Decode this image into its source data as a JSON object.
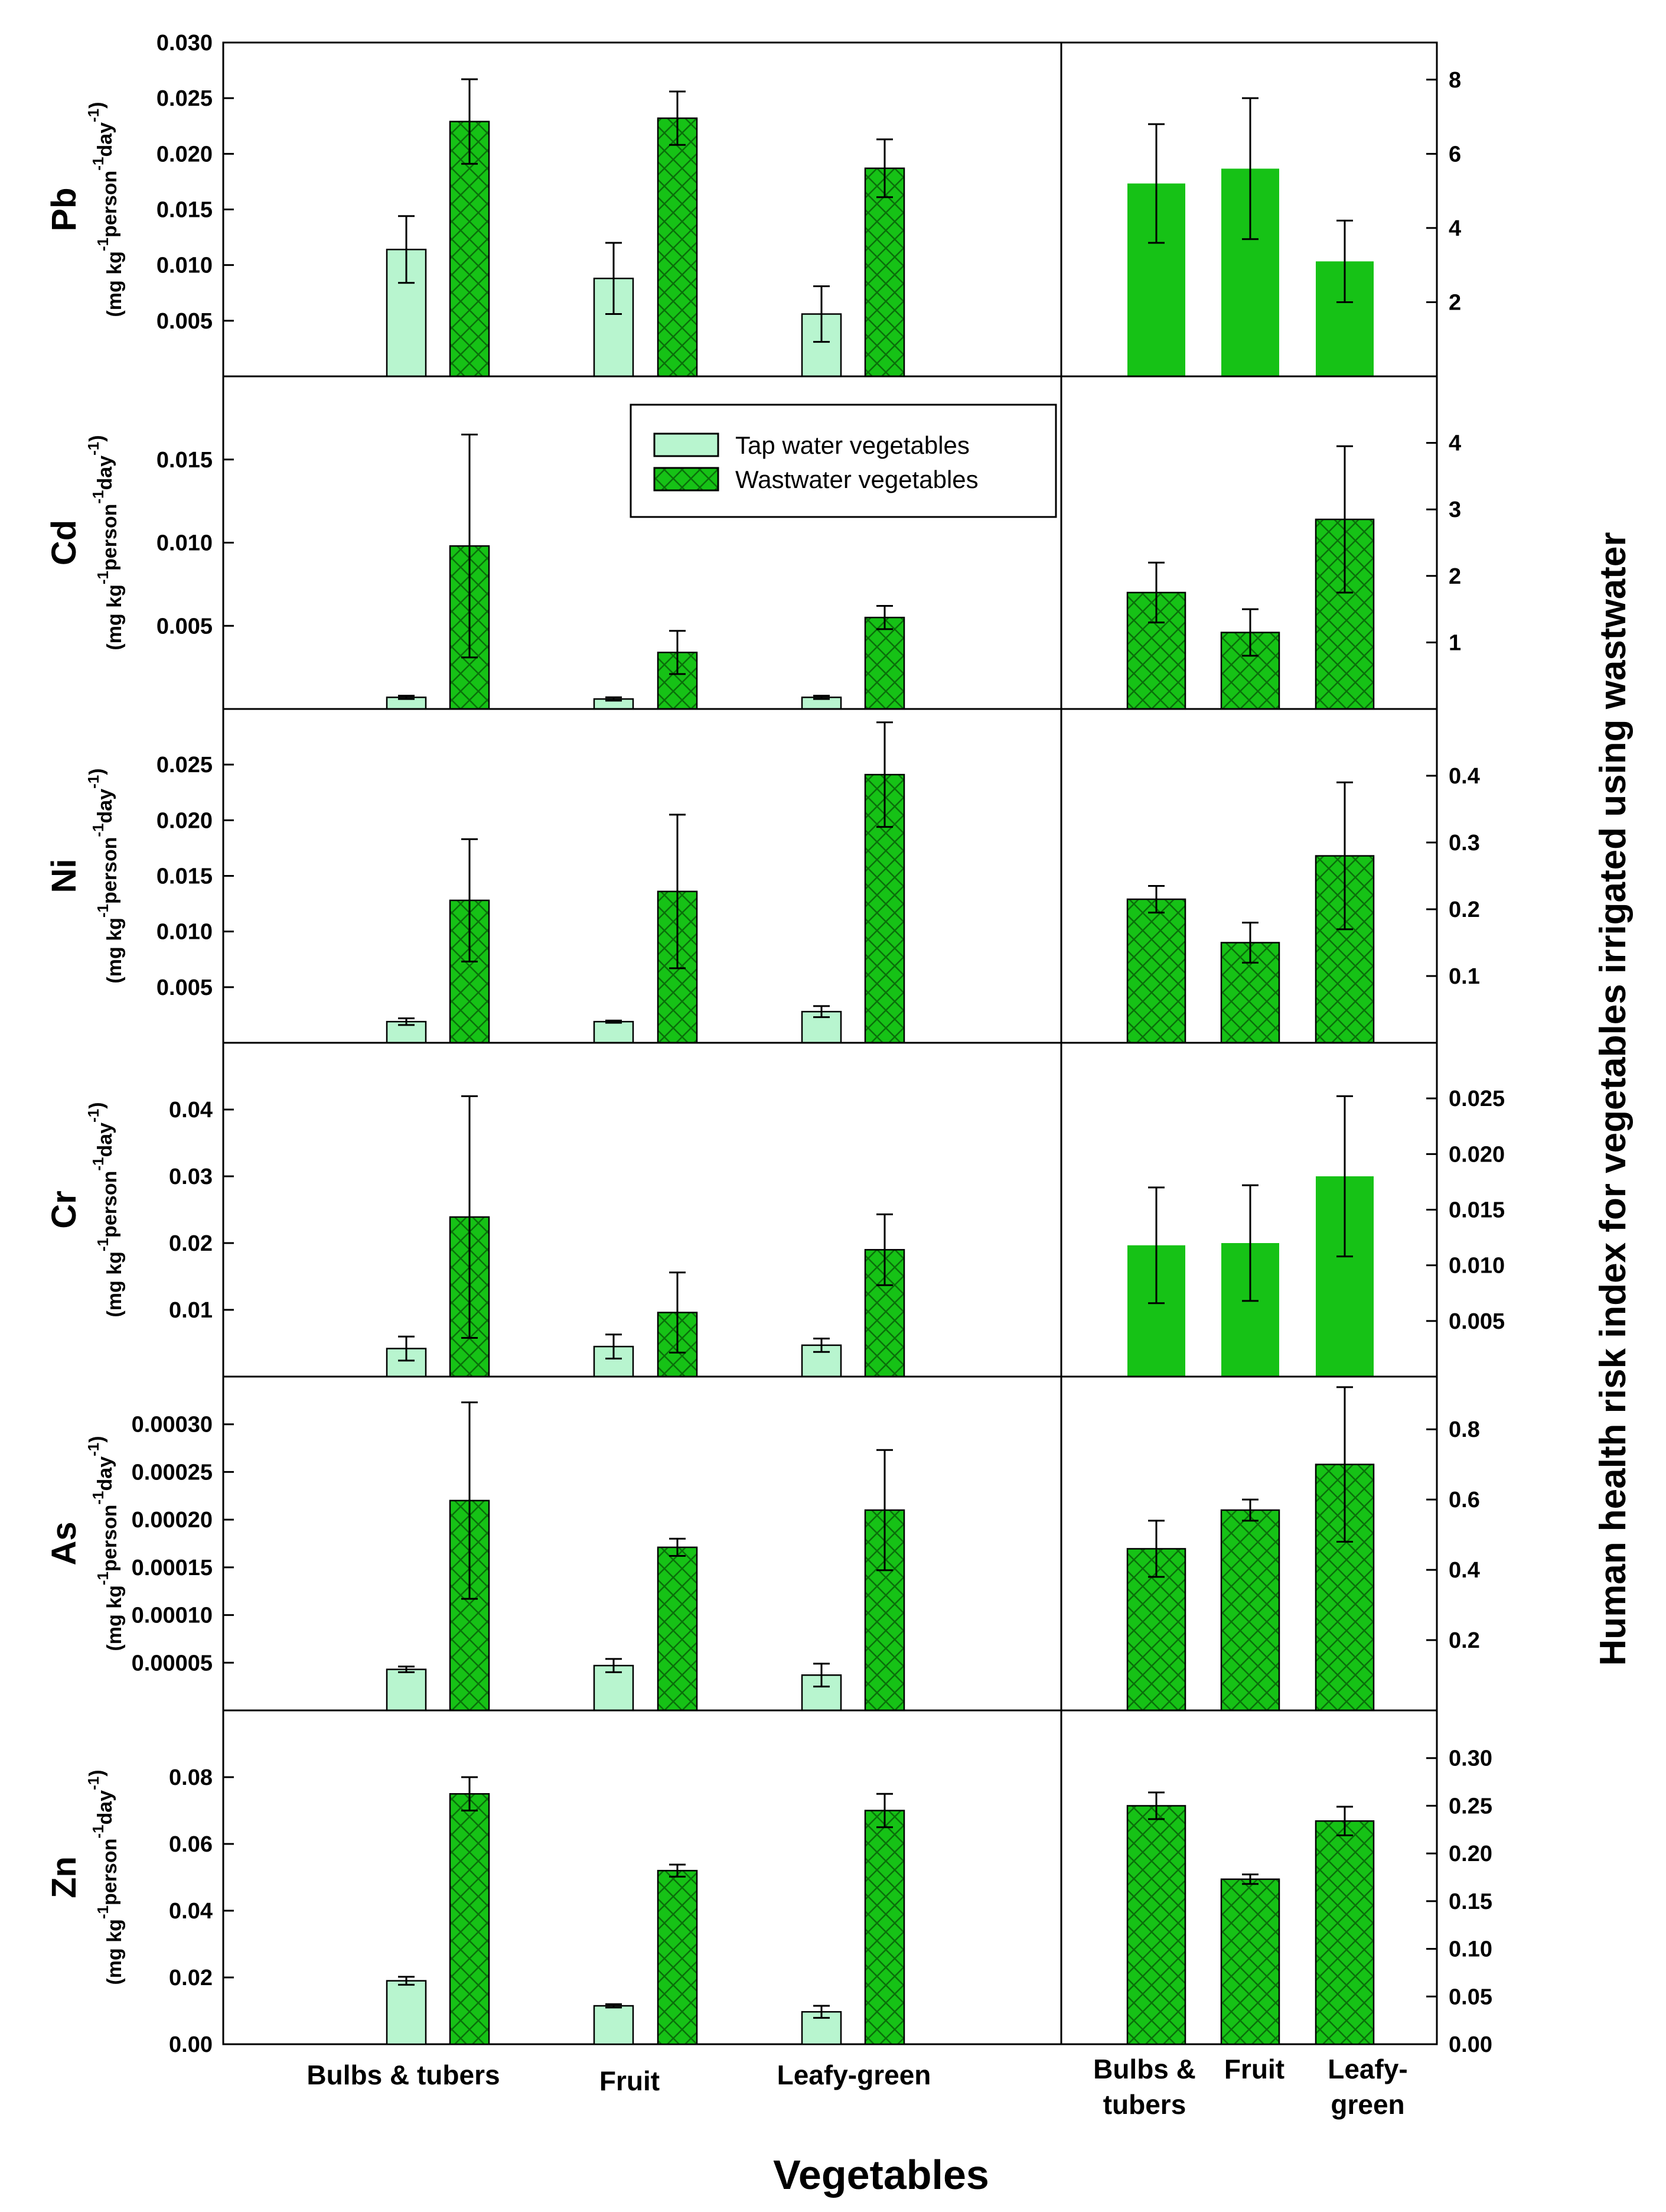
{
  "colors": {
    "tap_fill": "#b8f5cf",
    "tap_stroke": "#000000",
    "waste_fill": "#16c216",
    "waste_hatch": "#0a6f0a",
    "frame": "#000000"
  },
  "chart_data": {
    "type": "bar",
    "xlabel": "Vegetables",
    "right_axis_label": "Human health risk index  for vegetables irrigated using wastwater",
    "unit_label": {
      "prefix": "(mg kg",
      "kg_sup": "-1",
      "mid": "person",
      "person_sup": "-1",
      "day": "day",
      "day_sup": "-1",
      "suffix": ")"
    },
    "legend": {
      "tap": "Tap water vegetables",
      "waste": "Wastwater vegetables"
    },
    "left_categories": [
      "Bulbs & tubers",
      "Fruit",
      "Leafy-green"
    ],
    "right_categories": [
      {
        "line1": "Bulbs &",
        "line2": "tubers"
      },
      {
        "line1": "Fruit",
        "line2": ""
      },
      {
        "line1": "Leafy-",
        "line2": "green"
      }
    ],
    "panels": [
      {
        "element": "Pb",
        "intake_ylim": [
          0,
          0.03
        ],
        "intake_ticks": [
          "0.005",
          "0.010",
          "0.015",
          "0.020",
          "0.025",
          "0.030"
        ],
        "tap": [
          0.0114,
          0.0088,
          0.0056
        ],
        "tap_err": [
          0.003,
          0.0032,
          0.0025
        ],
        "waste": [
          0.0229,
          0.0232,
          0.0187
        ],
        "waste_err": [
          0.0038,
          0.0024,
          0.0026
        ],
        "risk_ylim": [
          0,
          9
        ],
        "risk_ticks": [
          "2",
          "4",
          "6",
          "8"
        ],
        "risk": [
          5.2,
          5.6,
          3.1
        ],
        "risk_err": [
          1.6,
          1.9,
          1.1
        ],
        "risk_hatched": false
      },
      {
        "element": "Cd",
        "intake_ylim": [
          0,
          0.02
        ],
        "intake_ticks": [
          "0.005",
          "0.010",
          "0.015"
        ],
        "tap": [
          0.0007,
          0.0006,
          0.0007
        ],
        "tap_err": [
          0.0001,
          0.0001,
          0.0001
        ],
        "waste": [
          0.0098,
          0.0034,
          0.0055
        ],
        "waste_err": [
          0.0067,
          0.0013,
          0.0007
        ],
        "risk_ylim": [
          0,
          5
        ],
        "risk_ticks": [
          "1",
          "2",
          "3",
          "4"
        ],
        "risk": [
          1.75,
          1.15,
          2.85
        ],
        "risk_err": [
          0.45,
          0.35,
          1.1
        ],
        "risk_hatched": true
      },
      {
        "element": "Ni",
        "intake_ylim": [
          0,
          0.03
        ],
        "intake_ticks": [
          "0.005",
          "0.010",
          "0.015",
          "0.020",
          "0.025"
        ],
        "tap": [
          0.0019,
          0.0019,
          0.0028
        ],
        "tap_err": [
          0.0003,
          0.0001,
          0.0005
        ],
        "waste": [
          0.0128,
          0.0136,
          0.0241
        ],
        "waste_err": [
          0.0055,
          0.0069,
          0.0047
        ],
        "risk_ylim": [
          0,
          0.5
        ],
        "risk_ticks": [
          "0.1",
          "0.2",
          "0.3",
          "0.4"
        ],
        "risk": [
          0.215,
          0.15,
          0.28
        ],
        "risk_err": [
          0.02,
          0.03,
          0.11
        ],
        "risk_hatched": true
      },
      {
        "element": "Cr",
        "intake_ylim": [
          0,
          0.05
        ],
        "intake_ticks": [
          "0.01",
          "0.02",
          "0.03",
          "0.04"
        ],
        "tap": [
          0.0042,
          0.0045,
          0.0047
        ],
        "tap_err": [
          0.0018,
          0.0018,
          0.001
        ],
        "waste": [
          0.0239,
          0.0096,
          0.019
        ],
        "waste_err": [
          0.0181,
          0.006,
          0.0053
        ],
        "risk_ylim": [
          0,
          0.03
        ],
        "risk_ticks": [
          "0.005",
          "0.010",
          "0.015",
          "0.020",
          "0.025"
        ],
        "risk": [
          0.0118,
          0.012,
          0.018
        ],
        "risk_err": [
          0.0052,
          0.0052,
          0.0072
        ],
        "risk_hatched": false
      },
      {
        "element": "As",
        "intake_ylim": [
          0,
          0.00035
        ],
        "intake_ticks": [
          "0.00005",
          "0.00010",
          "0.00015",
          "0.00020",
          "0.00025",
          "0.00030"
        ],
        "tap": [
          4.3e-05,
          4.7e-05,
          3.7e-05
        ],
        "tap_err": [
          3e-06,
          7e-06,
          1.2e-05
        ],
        "waste": [
          0.00022,
          0.000171,
          0.00021
        ],
        "waste_err": [
          0.000103,
          9e-06,
          6.3e-05
        ],
        "risk_ylim": [
          0,
          0.95
        ],
        "risk_ticks": [
          "0.2",
          "0.4",
          "0.6",
          "0.8"
        ],
        "risk": [
          0.46,
          0.57,
          0.7
        ],
        "risk_err": [
          0.08,
          0.03,
          0.22
        ],
        "risk_hatched": true
      },
      {
        "element": "Zn",
        "intake_ylim": [
          0,
          0.1
        ],
        "intake_ticks": [
          "0.00",
          "0.02",
          "0.04",
          "0.06",
          "0.08"
        ],
        "tap": [
          0.019,
          0.0115,
          0.0097
        ],
        "tap_err": [
          0.0012,
          0.0005,
          0.0018
        ],
        "waste": [
          0.075,
          0.052,
          0.07
        ],
        "waste_err": [
          0.005,
          0.0018,
          0.005
        ],
        "risk_ylim": [
          0,
          0.35
        ],
        "risk_ticks": [
          "0.00",
          "0.05",
          "0.10",
          "0.15",
          "0.20",
          "0.25",
          "0.30"
        ],
        "risk": [
          0.25,
          0.173,
          0.234
        ],
        "risk_err": [
          0.014,
          0.005,
          0.015
        ],
        "risk_hatched": true
      }
    ]
  }
}
